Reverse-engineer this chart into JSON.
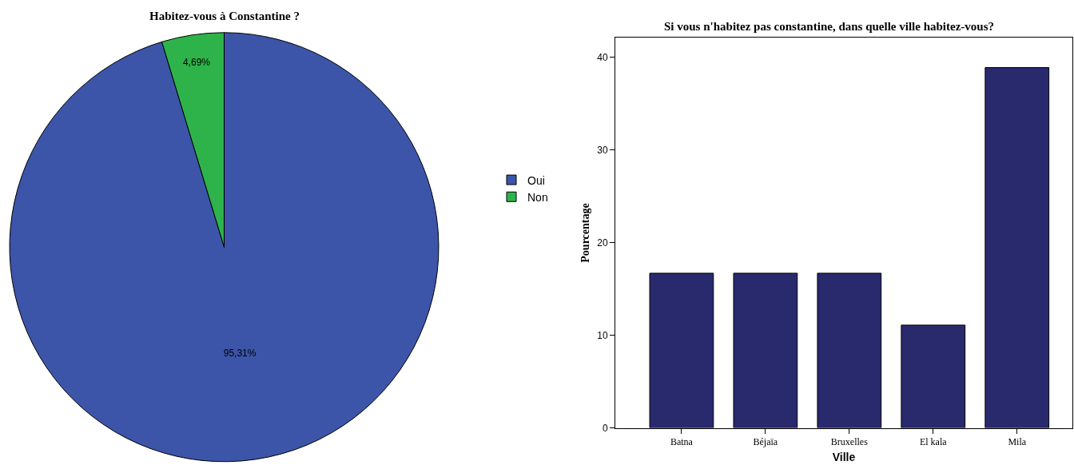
{
  "chart_data": [
    {
      "type": "pie",
      "title": "Habitez-vous à Constantine ?",
      "categories": [
        "Oui",
        "Non"
      ],
      "values": [
        95.31,
        4.69
      ],
      "colors": [
        "#3c55a8",
        "#2db34a"
      ],
      "value_labels": [
        "95,31%",
        "4,69%"
      ],
      "legend": "right"
    },
    {
      "type": "bar",
      "title": "Si vous n'habitez pas constantine, dans quelle ville habitez-vous?",
      "xlabel": "Ville",
      "ylabel": "Pourcentage",
      "categories": [
        "Batna",
        "Béjaïa",
        "Bruxelles",
        "El kala",
        "Mila"
      ],
      "values": [
        16.7,
        16.7,
        16.7,
        11.1,
        38.9
      ],
      "color": "#29296e",
      "ylim": [
        0,
        42.1
      ],
      "yticks": [
        0,
        10,
        20,
        30,
        40
      ]
    }
  ]
}
